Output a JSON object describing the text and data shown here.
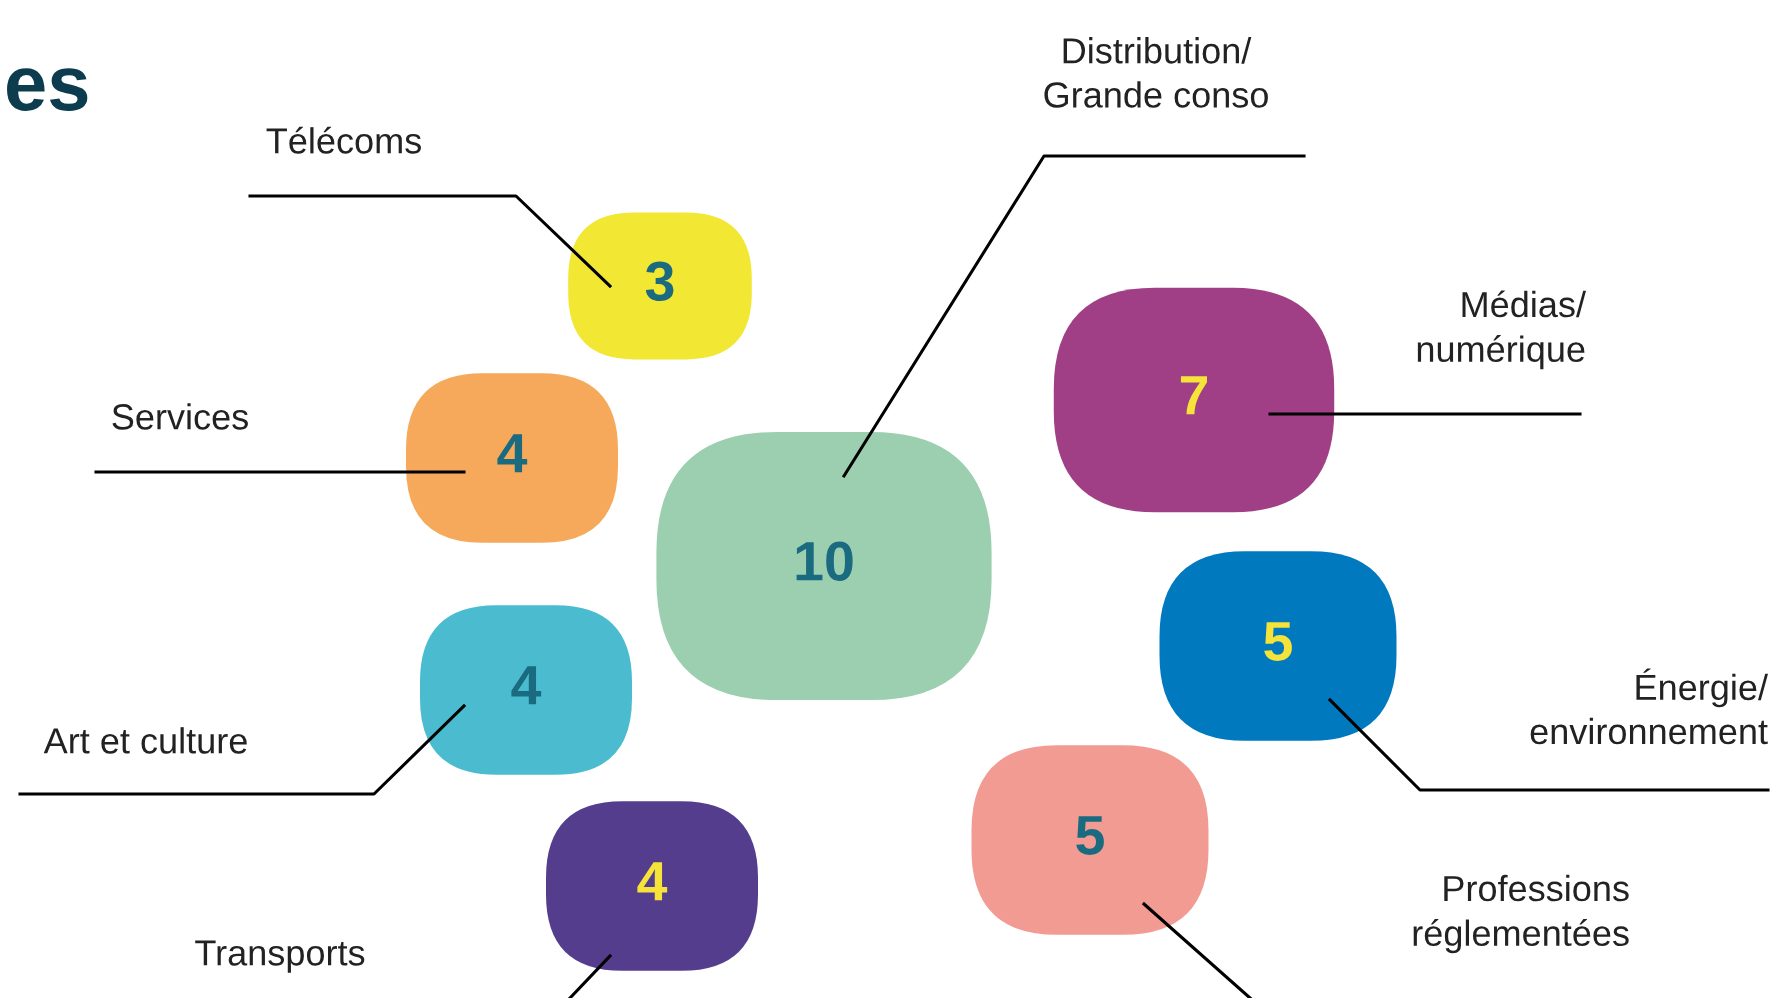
{
  "chart_data": {
    "type": "other",
    "title": "es",
    "categories": [
      "Télécoms",
      "Services",
      "Art et culture",
      "Transports",
      "Distribution/\nGrande conso",
      "Médias/\nnumérique",
      "Énergie/\nenvironnement",
      "Professions\nréglementées"
    ],
    "values": [
      3,
      4,
      4,
      4,
      10,
      7,
      5,
      5
    ],
    "colors": [
      "#f2e733",
      "#f6a95b",
      "#4bbccf",
      "#553d8e",
      "#9bcfb0",
      "#a03f86",
      "#0079bf",
      "#f29b92"
    ],
    "data_labels": true
  }
}
